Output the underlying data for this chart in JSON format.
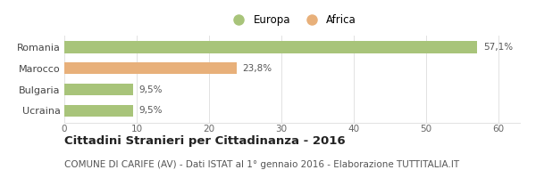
{
  "categories": [
    "Romania",
    "Marocco",
    "Bulgaria",
    "Ucraina"
  ],
  "values": [
    57.1,
    23.8,
    9.5,
    9.5
  ],
  "labels": [
    "57,1%",
    "23,8%",
    "9,5%",
    "9,5%"
  ],
  "bar_colors": [
    "#a8c47a",
    "#e8b07a",
    "#a8c47a",
    "#a8c47a"
  ],
  "legend": [
    {
      "label": "Europa",
      "color": "#a8c47a"
    },
    {
      "label": "Africa",
      "color": "#e8b07a"
    }
  ],
  "xlim": [
    0,
    63
  ],
  "xticks": [
    0,
    10,
    20,
    30,
    40,
    50,
    60
  ],
  "title": "Cittadini Stranieri per Cittadinanza - 2016",
  "subtitle": "COMUNE DI CARIFE (AV) - Dati ISTAT al 1° gennaio 2016 - Elaborazione TUTTITALIA.IT",
  "title_fontsize": 9.5,
  "subtitle_fontsize": 7.5,
  "background_color": "#ffffff",
  "grid_color": "#dddddd",
  "bar_height": 0.55
}
